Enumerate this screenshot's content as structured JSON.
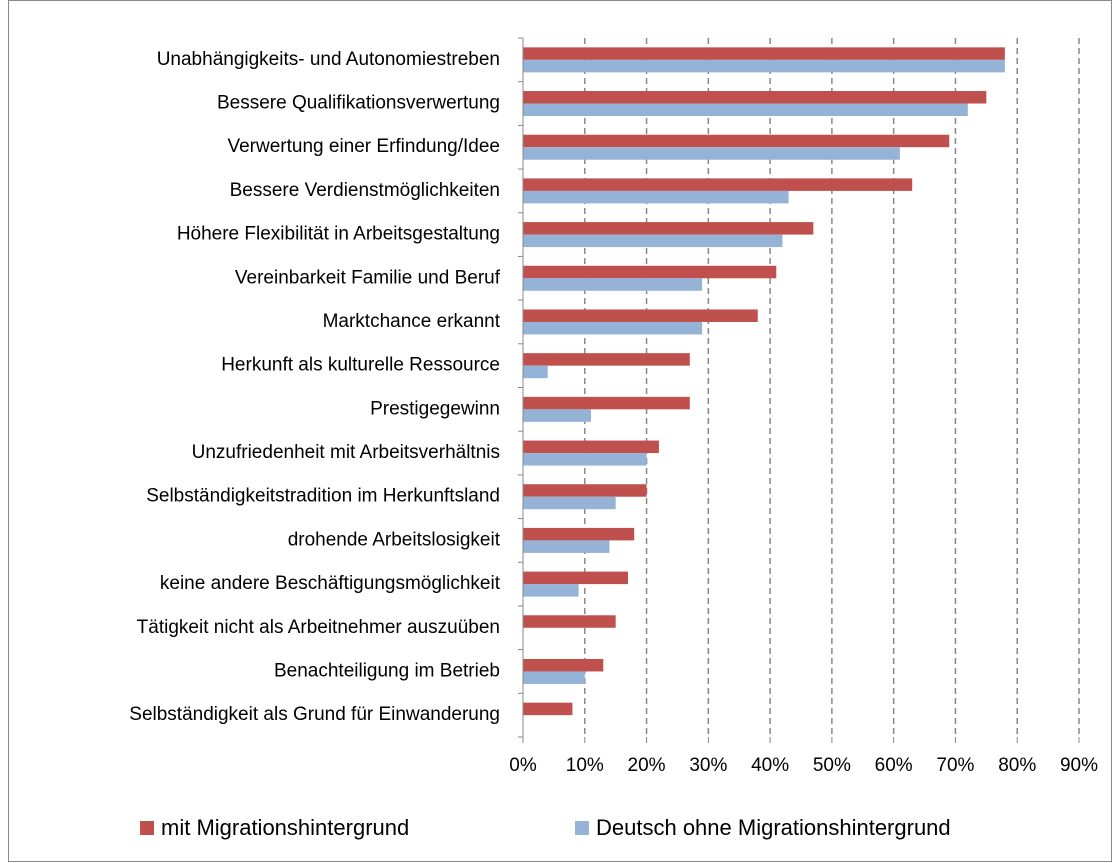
{
  "chart_data": {
    "type": "bar",
    "orientation": "horizontal",
    "categories": [
      "Unabhängigkeits- und Autonomiestreben",
      "Bessere Qualifikationsverwertung",
      "Verwertung einer Erfindung/Idee",
      "Bessere Verdienstmöglichkeiten",
      "Höhere Flexibilität in Arbeitsgestaltung",
      "Vereinbarkeit Familie und Beruf",
      "Marktchance erkannt",
      "Herkunft als kulturelle Ressource",
      "Prestigegewinn",
      "Unzufriedenheit mit Arbeitsverhältnis",
      "Selbständigkeitstradition im Herkunftsland",
      "drohende Arbeitslosigkeit",
      "keine andere Beschäftigungsmöglichkeit",
      "Tätigkeit nicht als Arbeitnehmer auszuüben",
      "Benachteiligung im Betrieb",
      "Selbständigkeit als Grund für Einwanderung"
    ],
    "series": [
      {
        "name": "mit Migrationshintergrund",
        "color": "#c0504d",
        "values": [
          78,
          75,
          69,
          63,
          47,
          41,
          38,
          27,
          27,
          22,
          20,
          18,
          17,
          15,
          13,
          8
        ]
      },
      {
        "name": "Deutsch ohne Migrationshintergrund",
        "color": "#95b3d7",
        "values": [
          78,
          72,
          61,
          43,
          42,
          29,
          29,
          4,
          11,
          20,
          15,
          14,
          9,
          null,
          10,
          null
        ]
      }
    ],
    "xlim": [
      0,
      90
    ],
    "xticks": [
      {
        "value": 0,
        "label": "0%"
      },
      {
        "value": 10,
        "label": "10%"
      },
      {
        "value": 20,
        "label": "20%"
      },
      {
        "value": 30,
        "label": "30%"
      },
      {
        "value": 40,
        "label": "40%"
      },
      {
        "value": 50,
        "label": "50%"
      },
      {
        "value": 60,
        "label": "60%"
      },
      {
        "value": 70,
        "label": "70%"
      },
      {
        "value": 80,
        "label": "80%"
      },
      {
        "value": 90,
        "label": "90%"
      }
    ],
    "grid": true,
    "legend": "bottom"
  }
}
